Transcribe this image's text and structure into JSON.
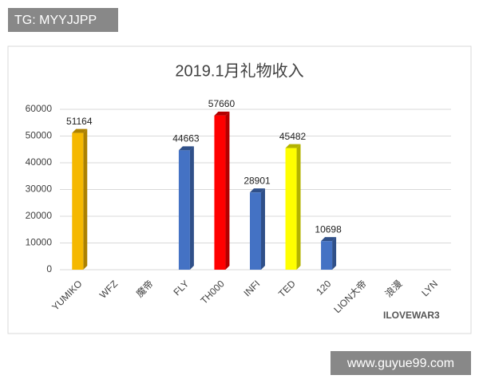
{
  "header": {
    "tag": "TG: MYYJJPP"
  },
  "chart_data": {
    "type": "bar",
    "title": "2019.1月礼物收入",
    "categories": [
      "YUMIKO",
      "WFZ",
      "魔帝",
      "FLY",
      "TH000",
      "INFI",
      "TED",
      "120",
      "LION大帝",
      "浪漫",
      "LYN"
    ],
    "values": [
      51164,
      null,
      null,
      44663,
      57660,
      28901,
      45482,
      10698,
      null,
      null,
      null
    ],
    "colors": [
      "#f5b800",
      null,
      null,
      "#4472c4",
      "#ff0000",
      "#4472c4",
      "#ffff00",
      "#4472c4",
      null,
      null,
      null
    ],
    "ylim": [
      0,
      60000
    ],
    "yticks": [
      0,
      10000,
      20000,
      30000,
      40000,
      50000,
      60000
    ],
    "grid": true
  },
  "watermark": "ILOVEWAR3",
  "footer": {
    "site": "www.guyue99.com"
  }
}
